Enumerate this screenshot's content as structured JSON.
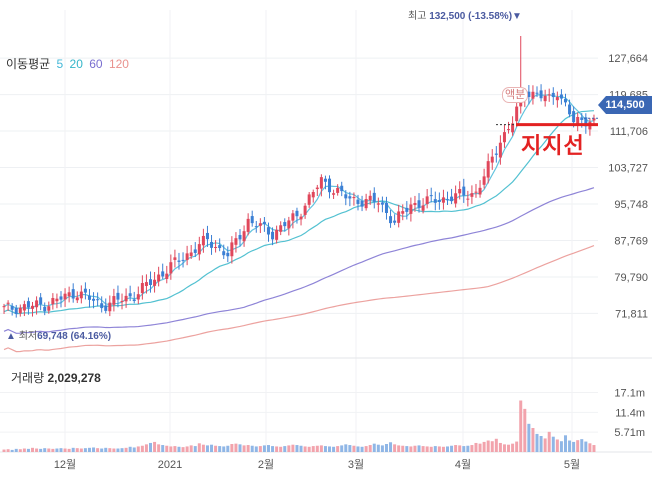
{
  "legend": {
    "title": "이동평균",
    "ma": [
      {
        "label": "5",
        "color": "#45b8d8"
      },
      {
        "label": "20",
        "color": "#35b6c9"
      },
      {
        "label": "60",
        "color": "#7a6fd0"
      },
      {
        "label": "120",
        "color": "#e9928e"
      }
    ]
  },
  "annotations": {
    "max_prefix": "최고",
    "max_value": "132,500 (-13.58%)",
    "min_prefix": "최저",
    "min_value": "69,748 (64.16%)",
    "dividend": "액분",
    "support": "지지선",
    "current_price": "114,500"
  },
  "volume": {
    "label": "거래량",
    "value": "2,029,278"
  },
  "colors": {
    "up": "#e0475b",
    "down": "#3b7fd4",
    "support_line": "#e32222",
    "badge": "#3a67b4"
  },
  "chart_data": {
    "type": "candlestick",
    "price_ticks": [
      "127,664",
      "119,685",
      "111,706",
      "103,727",
      "95,748",
      "87,769",
      "79,790",
      "71,811"
    ],
    "volume_ticks": [
      "17.1m",
      "11.4m",
      "5.71m"
    ],
    "x_labels": [
      "12월",
      "2021",
      "2월",
      "3월",
      "4월",
      "5월"
    ],
    "price_range": [
      66000,
      136000
    ],
    "volume_range": [
      0,
      23000000
    ],
    "max_price": 132500,
    "min_price": 69748,
    "current_price": 114500,
    "support_level": 114000,
    "anchors": [
      [
        0,
        72800
      ],
      [
        10,
        73700
      ],
      [
        18,
        76500
      ],
      [
        24,
        73500
      ],
      [
        32,
        75800
      ],
      [
        42,
        82800
      ],
      [
        50,
        87900
      ],
      [
        55,
        84500
      ],
      [
        60,
        92100
      ],
      [
        66,
        89300
      ],
      [
        72,
        93200
      ],
      [
        78,
        100800
      ],
      [
        85,
        96700
      ],
      [
        92,
        96200
      ],
      [
        96,
        91800
      ],
      [
        100,
        95600
      ],
      [
        108,
        96900
      ],
      [
        116,
        98300
      ],
      [
        118,
        101700
      ],
      [
        122,
        109700
      ],
      [
        125,
        113700
      ],
      [
        128,
        120600
      ],
      [
        134,
        118600
      ],
      [
        136,
        120600
      ],
      [
        140,
        113700
      ],
      [
        145,
        114500
      ]
    ],
    "volume_levels": [
      0.7,
      0.8,
      0.6,
      0.9,
      0.8,
      1.0,
      0.9,
      1.2,
      1.0,
      0.9,
      1.1,
      1.0,
      0.9,
      1.0,
      1.1,
      1.0,
      0.9,
      1.2,
      1.1,
      1.0,
      1.1,
      1.2,
      1.3,
      1.1,
      1.0,
      1.2,
      1.1,
      1.0,
      1.0,
      1.1,
      1.2,
      1.5,
      1.3,
      1.6,
      1.8,
      2.2,
      2.6,
      2.9,
      2.2,
      2.0,
      1.8,
      1.6,
      1.7,
      1.5,
      1.4,
      1.6,
      1.9,
      1.7,
      2.5,
      2.1,
      1.9,
      2.1,
      1.8,
      1.7,
      1.6,
      1.8,
      2.3,
      2.4,
      2.2,
      1.9,
      2.0,
      1.8,
      1.6,
      1.7,
      1.9,
      2.0,
      1.7,
      1.6,
      1.5,
      1.7,
      1.9,
      2.1,
      2.0,
      1.8,
      1.6,
      1.5,
      1.7,
      1.8,
      1.9,
      1.7,
      1.6,
      1.5,
      1.7,
      1.9,
      2.2,
      2.0,
      1.8,
      1.6,
      1.5,
      1.7,
      2.0,
      2.4,
      2.1,
      1.9,
      2.3,
      2.8,
      2.2,
      1.9,
      1.8,
      1.7,
      1.6,
      1.8,
      1.9,
      1.7,
      1.6,
      1.5,
      1.7,
      1.6,
      1.5,
      1.6,
      1.8,
      2.0,
      1.9,
      1.7,
      1.8,
      2.0,
      2.6,
      2.4,
      2.9,
      3.3,
      3.1,
      3.8,
      2.6,
      2.2,
      2.1,
      2.4,
      3.0,
      14.8,
      12.4,
      8.1,
      6.9,
      5.2,
      4.6,
      3.9,
      5.8,
      4.4,
      3.6,
      3.1,
      4.8,
      3.3,
      2.9,
      3.4,
      3.7,
      3.0,
      2.5,
      2.0
    ]
  }
}
